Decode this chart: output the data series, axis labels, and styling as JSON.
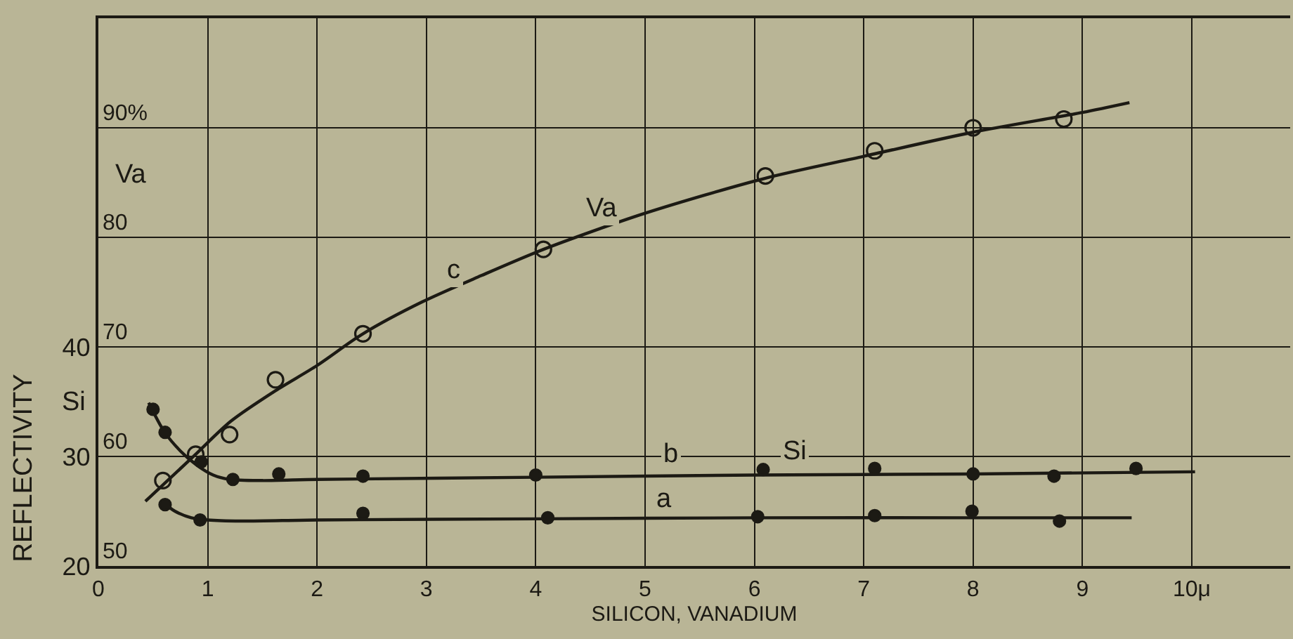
{
  "chart_data": {
    "type": "scatter",
    "xlabel": "SILICON, VANADIUM",
    "ylabel": "REFLECTIVITY",
    "xlim": [
      0,
      10.9
    ],
    "xticks": [
      0,
      1,
      2,
      3,
      4,
      5,
      6,
      7,
      8,
      9,
      {
        "value": 10,
        "label": "10μ"
      }
    ],
    "ylim": [
      20,
      70
    ],
    "yticks": [
      20,
      30,
      40
    ],
    "y2lim": [
      50,
      100
    ],
    "y2ticks": [
      50,
      60,
      70,
      80,
      {
        "value": 90,
        "label": "90%"
      }
    ],
    "grid": true,
    "series": [
      {
        "type": "line",
        "color": "#1c1a14",
        "line_style": "solid",
        "marker": "none",
        "x": [
          0.58,
          0.7,
          0.85,
          1.0,
          1.3,
          2,
          4,
          6,
          8,
          9.45
        ],
        "values": [
          25.9,
          25.0,
          24.4,
          24.2,
          24.1,
          24.2,
          24.3,
          24.4,
          24.4,
          24.4
        ]
      },
      {
        "type": "line",
        "color": "#1c1a14",
        "line_style": "solid",
        "marker": "none",
        "x": [
          0.46,
          0.6,
          0.75,
          0.9,
          1.05,
          1.2,
          1.5,
          2,
          4,
          6,
          8,
          10.03
        ],
        "values": [
          34.9,
          32.3,
          30.5,
          29.2,
          28.3,
          27.9,
          27.8,
          27.9,
          28.1,
          28.3,
          28.4,
          28.6
        ]
      },
      {
        "type": "line",
        "color": "#1c1a14",
        "line_style": "solid",
        "marker": "none",
        "axis": "y2",
        "x": [
          0.43,
          0.88,
          1.21,
          1.62,
          2.0,
          2.42,
          2.96,
          3.5,
          4.07,
          5.0,
          6.1,
          7,
          8,
          9,
          9.43
        ],
        "values": [
          55.9,
          60.1,
          63.2,
          66.0,
          68.3,
          71.2,
          74.1,
          76.5,
          78.9,
          82.2,
          85.4,
          87.4,
          89.6,
          91.4,
          92.3
        ]
      },
      {
        "type": "scatter",
        "color": "#1c1a14",
        "marker": "circle",
        "x": [
          0.61,
          0.93,
          2.42,
          4.11,
          6.03,
          7.1,
          7.99,
          8.79
        ],
        "values": [
          25.6,
          24.2,
          24.8,
          24.4,
          24.5,
          24.6,
          25.0,
          24.1
        ]
      },
      {
        "type": "scatter",
        "color": "#1c1a14",
        "marker": "circle",
        "x": [
          0.5,
          0.61,
          0.94,
          1.23,
          1.65,
          2.42,
          4.0,
          6.08,
          7.1,
          8.0,
          8.74,
          9.49
        ],
        "values": [
          34.3,
          32.2,
          29.5,
          27.9,
          28.4,
          28.2,
          28.3,
          28.8,
          28.9,
          28.4,
          28.2,
          28.9
        ]
      },
      {
        "type": "scatter",
        "color": "#1c1a14",
        "marker": "circle-open",
        "axis": "y2",
        "x": [
          0.59,
          0.89,
          1.2,
          1.62,
          2.42,
          4.07,
          6.1,
          7.1,
          8.0,
          8.83
        ],
        "values": [
          57.8,
          60.2,
          62.0,
          67.0,
          71.2,
          78.9,
          85.6,
          87.9,
          90.0,
          90.8
        ]
      }
    ],
    "annotations": [
      "Si",
      "Va",
      "a",
      "b",
      "Si",
      "c",
      "Va"
    ]
  }
}
